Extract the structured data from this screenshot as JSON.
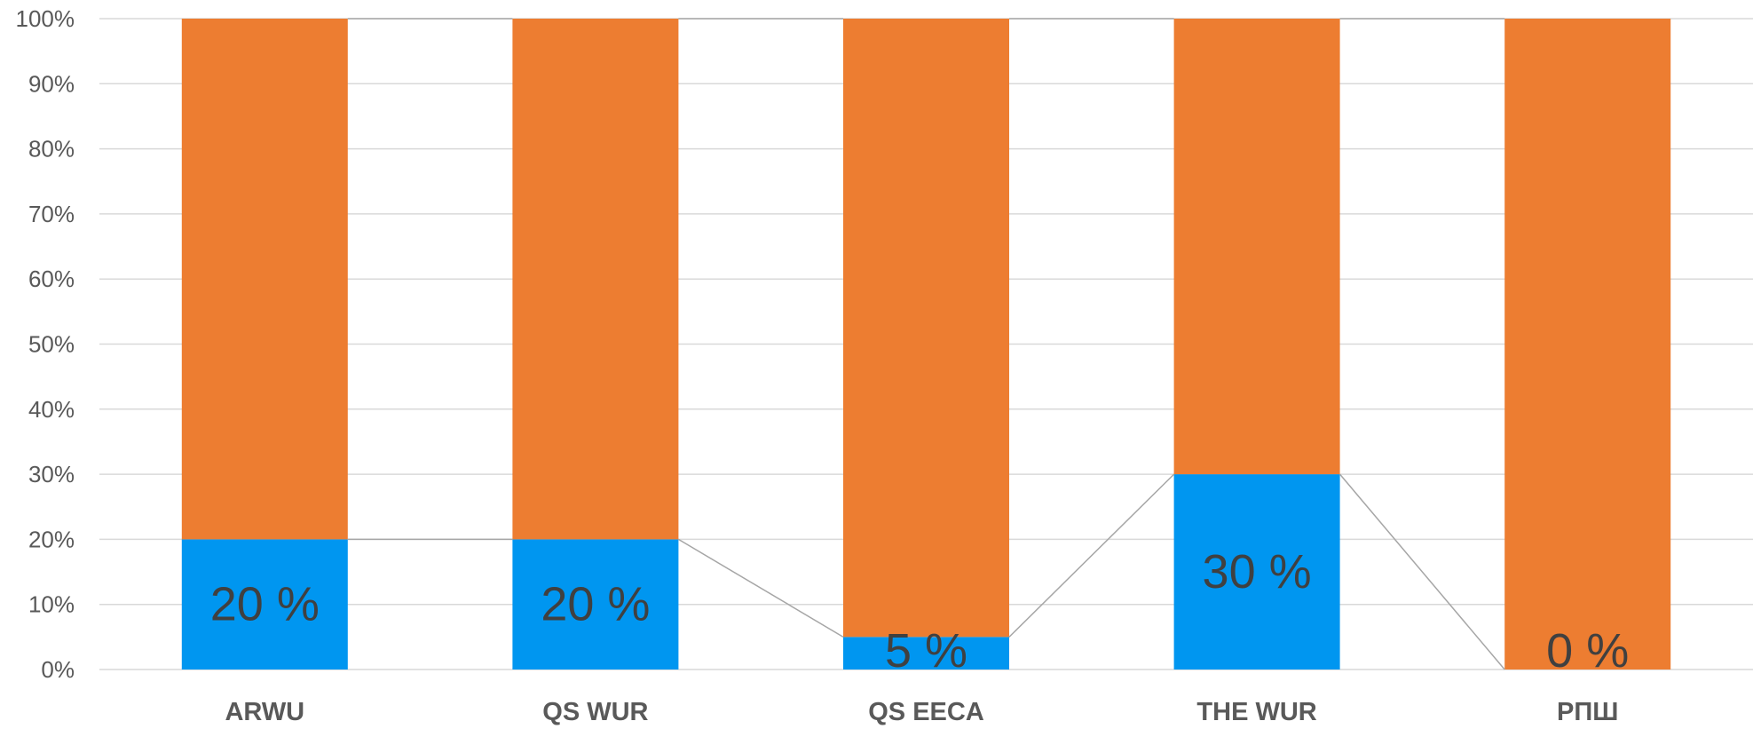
{
  "chart_data": {
    "type": "bar",
    "stacked": true,
    "normalized": true,
    "categories": [
      "ARWU",
      "QS WUR",
      "QS EECA",
      "THE WUR",
      "РПШ"
    ],
    "series": [
      {
        "values": [
          20,
          20,
          5,
          30,
          0
        ],
        "color": "#0096f0"
      },
      {
        "values": [
          80,
          80,
          95,
          70,
          100
        ],
        "color": "#ed7d31"
      }
    ],
    "data_labels": [
      "20 %",
      "20 %",
      "5 %",
      "30 %",
      "0 %"
    ],
    "y_ticks": [
      "0%",
      "10%",
      "20%",
      "30%",
      "40%",
      "50%",
      "60%",
      "70%",
      "80%",
      "90%",
      "100%"
    ],
    "ylim": [
      0,
      100
    ],
    "grid": true,
    "series_lines": true,
    "title": "",
    "xlabel": "",
    "ylabel": ""
  },
  "colors": {
    "grid": "#d9d9d9",
    "series_line": "#a6a6a6",
    "axis_text": "#595959"
  }
}
